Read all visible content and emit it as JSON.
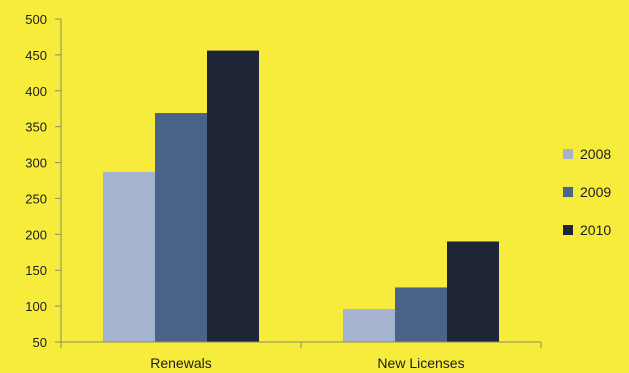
{
  "chart_data": {
    "type": "bar",
    "categories": [
      "Renewals",
      "New Licenses"
    ],
    "series": [
      {
        "name": "2008",
        "values": [
          287,
          96
        ],
        "color": "#a6b3cf"
      },
      {
        "name": "2009",
        "values": [
          369,
          126
        ],
        "color": "#4b6289"
      },
      {
        "name": "2010",
        "values": [
          456,
          190
        ],
        "color": "#1d2536"
      }
    ],
    "ylim": [
      50,
      500
    ],
    "yticks": [
      50,
      100,
      150,
      200,
      250,
      300,
      350,
      400,
      450,
      500
    ],
    "title": "",
    "xlabel": "",
    "ylabel": "",
    "legend_position": "right",
    "grid": false,
    "colors": {
      "background": "#f7ec3c",
      "axis": "#8c8c6a",
      "text": "#1e1e1e"
    }
  }
}
